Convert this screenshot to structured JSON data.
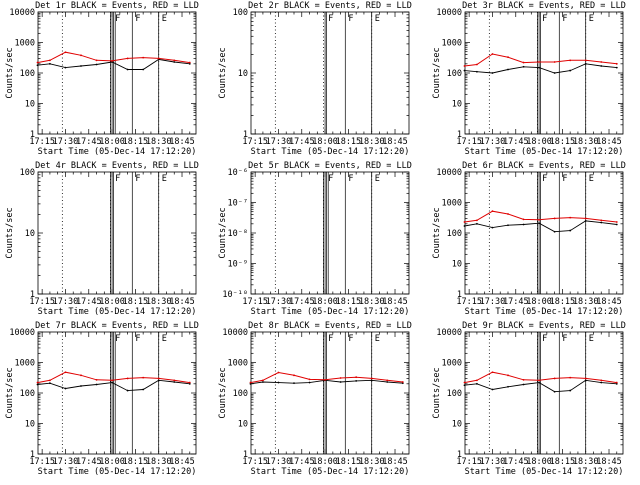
{
  "colors": {
    "events": "#000000",
    "lld": "#e00000",
    "background": "#ffffff"
  },
  "chart_data": [
    {
      "panel": "det1r",
      "type": "line",
      "title": "Det 1r BLACK = Events, RED = LLD",
      "xlabel": "Start Time (05-Dec-14 17:12:20)",
      "ylabel": "Counts/sec",
      "y_scale": "log",
      "ylim": [
        1,
        10000
      ],
      "y_ticks": [
        "1",
        "10",
        "100",
        "1000",
        "10000"
      ],
      "x_ticks": [
        "17:15",
        "17:30",
        "17:45",
        "18:00",
        "18:15",
        "18:30",
        "18:45"
      ],
      "grid": false,
      "x": [
        "17:12",
        "17:20",
        "17:30",
        "17:40",
        "17:50",
        "18:00",
        "18:10",
        "18:20",
        "18:30",
        "18:40",
        "18:50"
      ],
      "series": [
        {
          "name": "Events",
          "values": [
            180,
            200,
            150,
            170,
            190,
            230,
            130,
            130,
            280,
            230,
            200
          ]
        },
        {
          "name": "LLD",
          "values": [
            220,
            260,
            480,
            380,
            260,
            250,
            300,
            320,
            300,
            260,
            220
          ]
        }
      ],
      "vertical_solid": [
        "17:59",
        "18:00",
        "18:01",
        "18:02",
        "18:13",
        "18:30"
      ],
      "vertical_dotted": [
        "17:28",
        "17:59",
        "18:30"
      ],
      "flag_labels": [
        "F",
        "F",
        "E"
      ]
    },
    {
      "panel": "det2r",
      "type": "line",
      "title": "Det 2r BLACK = Events, RED = LLD",
      "xlabel": "Start Time (05-Dec-14 17:12:20)",
      "ylabel": "Counts/sec",
      "y_scale": "log",
      "ylim": [
        1,
        100
      ],
      "y_ticks": [
        "1",
        "10",
        "100"
      ],
      "x_ticks": [
        "17:15",
        "17:30",
        "17:45",
        "18:00",
        "18:15",
        "18:30",
        "18:45"
      ],
      "grid": false,
      "x": [],
      "series": [],
      "vertical_solid": [
        "18:00",
        "18:01",
        "18:13",
        "18:30"
      ],
      "vertical_dotted": [
        "17:28",
        "17:59",
        "18:30"
      ],
      "flag_labels": [
        "F",
        "F",
        "E"
      ]
    },
    {
      "panel": "det3r",
      "type": "line",
      "title": "Det 3r BLACK = Events, RED = LLD",
      "xlabel": "Start Time (05-Dec-14 17:12:20)",
      "ylabel": "Counts/sec",
      "y_scale": "log",
      "ylim": [
        1,
        10000
      ],
      "y_ticks": [
        "1",
        "10",
        "100",
        "1000",
        "10000"
      ],
      "x_ticks": [
        "17:15",
        "17:30",
        "17:45",
        "18:00",
        "18:15",
        "18:30",
        "18:45"
      ],
      "grid": false,
      "x": [
        "17:12",
        "17:20",
        "17:30",
        "17:40",
        "17:50",
        "18:00",
        "18:10",
        "18:20",
        "18:30",
        "18:40",
        "18:50"
      ],
      "series": [
        {
          "name": "Events",
          "values": [
            120,
            110,
            100,
            130,
            160,
            150,
            100,
            120,
            200,
            170,
            150
          ]
        },
        {
          "name": "LLD",
          "values": [
            170,
            190,
            420,
            330,
            220,
            230,
            230,
            260,
            260,
            230,
            200
          ]
        }
      ],
      "vertical_solid": [
        "17:59",
        "18:00",
        "18:01",
        "18:13",
        "18:30"
      ],
      "vertical_dotted": [
        "17:28",
        "17:59",
        "18:30"
      ],
      "flag_labels": [
        "F",
        "F",
        "E"
      ]
    },
    {
      "panel": "det4r",
      "type": "line",
      "title": "Det 4r BLACK = Events, RED = LLD",
      "xlabel": "Start Time (05-Dec-14 17:12:20)",
      "ylabel": "Counts/sec",
      "y_scale": "log",
      "ylim": [
        1,
        100
      ],
      "y_ticks": [
        "1",
        "10",
        "100"
      ],
      "x_ticks": [
        "17:15",
        "17:30",
        "17:45",
        "18:00",
        "18:15",
        "18:30",
        "18:45"
      ],
      "grid": false,
      "x": [],
      "series": [],
      "vertical_solid": [
        "17:59",
        "18:00",
        "18:01",
        "18:13",
        "18:30"
      ],
      "vertical_dotted": [
        "17:28",
        "17:59",
        "18:30"
      ],
      "flag_labels": [
        "F",
        "F",
        "E"
      ]
    },
    {
      "panel": "det5r",
      "type": "line",
      "title": "Det 5r BLACK = Events, RED = LLD",
      "xlabel": "Start Time (05-Dec-14 17:12:20)",
      "ylabel": "Counts/sec",
      "y_scale": "log",
      "ylim": [
        1e-10,
        1e-06
      ],
      "y_ticks": [
        "10⁻¹⁰",
        "10⁻⁹",
        "10⁻⁸",
        "10⁻⁷",
        "10⁻⁶"
      ],
      "x_ticks": [
        "17:15",
        "17:30",
        "17:45",
        "18:00",
        "18:15",
        "18:30",
        "18:45"
      ],
      "grid": false,
      "x": [],
      "series": [],
      "vertical_solid": [
        "17:59",
        "18:00",
        "18:01",
        "18:02",
        "18:13",
        "18:30"
      ],
      "vertical_dotted": [
        "17:28",
        "17:59",
        "18:30"
      ],
      "flag_labels": [
        "F",
        "F",
        "E"
      ]
    },
    {
      "panel": "det6r",
      "type": "line",
      "title": "Det 6r BLACK = Events, RED = LLD",
      "xlabel": "Start Time (05-Dec-14 17:12:20)",
      "ylabel": "Counts/sec",
      "y_scale": "log",
      "ylim": [
        1,
        10000
      ],
      "y_ticks": [
        "1",
        "10",
        "100",
        "1000",
        "10000"
      ],
      "x_ticks": [
        "17:15",
        "17:30",
        "17:45",
        "18:00",
        "18:15",
        "18:30",
        "18:45"
      ],
      "grid": false,
      "x": [
        "17:12",
        "17:20",
        "17:30",
        "17:40",
        "17:50",
        "18:00",
        "18:10",
        "18:20",
        "18:30",
        "18:40",
        "18:50"
      ],
      "series": [
        {
          "name": "Events",
          "values": [
            170,
            200,
            150,
            180,
            190,
            210,
            110,
            120,
            250,
            220,
            190
          ]
        },
        {
          "name": "LLD",
          "values": [
            230,
            260,
            520,
            420,
            280,
            270,
            300,
            320,
            300,
            260,
            230
          ]
        }
      ],
      "vertical_solid": [
        "17:59",
        "18:00",
        "18:01",
        "18:13",
        "18:30"
      ],
      "vertical_dotted": [
        "17:28",
        "17:59",
        "18:30"
      ],
      "flag_labels": [
        "F",
        "F",
        "E"
      ]
    },
    {
      "panel": "det7r",
      "type": "line",
      "title": "Det 7r BLACK = Events, RED = LLD",
      "xlabel": "Start Time (05-Dec-14 17:12:20)",
      "ylabel": "Counts/sec",
      "y_scale": "log",
      "ylim": [
        1,
        10000
      ],
      "y_ticks": [
        "1",
        "10",
        "100",
        "1000",
        "10000"
      ],
      "x_ticks": [
        "17:15",
        "17:30",
        "17:45",
        "18:00",
        "18:15",
        "18:30",
        "18:45"
      ],
      "grid": false,
      "x": [
        "17:12",
        "17:20",
        "17:30",
        "17:40",
        "17:50",
        "18:00",
        "18:10",
        "18:20",
        "18:30",
        "18:40",
        "18:50"
      ],
      "series": [
        {
          "name": "Events",
          "values": [
            190,
            210,
            140,
            170,
            190,
            220,
            120,
            130,
            260,
            230,
            200
          ]
        },
        {
          "name": "LLD",
          "values": [
            220,
            260,
            480,
            380,
            270,
            260,
            300,
            320,
            300,
            260,
            220
          ]
        }
      ],
      "vertical_solid": [
        "17:59",
        "18:00",
        "18:01",
        "18:02",
        "18:13",
        "18:30"
      ],
      "vertical_dotted": [
        "17:28",
        "17:59",
        "18:30"
      ],
      "flag_labels": [
        "F",
        "F",
        "E"
      ]
    },
    {
      "panel": "det8r",
      "type": "line",
      "title": "Det 8r BLACK = Events, RED = LLD",
      "xlabel": "Start Time (05-Dec-14 17:12:20)",
      "ylabel": "Counts/sec",
      "y_scale": "log",
      "ylim": [
        1,
        10000
      ],
      "y_ticks": [
        "1",
        "10",
        "100",
        "1000",
        "10000"
      ],
      "x_ticks": [
        "17:15",
        "17:30",
        "17:45",
        "18:00",
        "18:15",
        "18:30",
        "18:45"
      ],
      "grid": false,
      "x": [
        "17:12",
        "17:20",
        "17:30",
        "17:40",
        "17:50",
        "18:00",
        "18:10",
        "18:20",
        "18:30",
        "18:40",
        "18:50"
      ],
      "series": [
        {
          "name": "Events",
          "values": [
            200,
            230,
            220,
            210,
            220,
            260,
            230,
            250,
            260,
            230,
            210
          ]
        },
        {
          "name": "LLD",
          "values": [
            220,
            260,
            470,
            380,
            280,
            270,
            310,
            330,
            300,
            260,
            230
          ]
        }
      ],
      "vertical_solid": [
        "17:59",
        "18:00",
        "18:01",
        "18:13",
        "18:30"
      ],
      "vertical_dotted": [
        "17:28",
        "17:59",
        "18:30"
      ],
      "flag_labels": [
        "F",
        "F",
        "E"
      ]
    },
    {
      "panel": "det9r",
      "type": "line",
      "title": "Det 9r BLACK = Events, RED = LLD",
      "xlabel": "Start Time (05-Dec-14 17:12:20)",
      "ylabel": "Counts/sec",
      "y_scale": "log",
      "ylim": [
        1,
        10000
      ],
      "y_ticks": [
        "1",
        "10",
        "100",
        "1000",
        "10000"
      ],
      "x_ticks": [
        "17:15",
        "17:30",
        "17:45",
        "18:00",
        "18:15",
        "18:30",
        "18:45"
      ],
      "grid": false,
      "x": [
        "17:12",
        "17:20",
        "17:30",
        "17:40",
        "17:50",
        "18:00",
        "18:10",
        "18:20",
        "18:30",
        "18:40",
        "18:50"
      ],
      "series": [
        {
          "name": "Events",
          "values": [
            180,
            200,
            130,
            160,
            190,
            220,
            110,
            120,
            260,
            220,
            200
          ]
        },
        {
          "name": "LLD",
          "values": [
            220,
            260,
            480,
            380,
            270,
            260,
            300,
            320,
            300,
            260,
            220
          ]
        }
      ],
      "vertical_solid": [
        "17:59",
        "18:00",
        "18:01",
        "18:13",
        "18:30"
      ],
      "vertical_dotted": [
        "17:28",
        "17:59",
        "18:30"
      ],
      "flag_labels": [
        "F",
        "F",
        "E"
      ]
    }
  ]
}
